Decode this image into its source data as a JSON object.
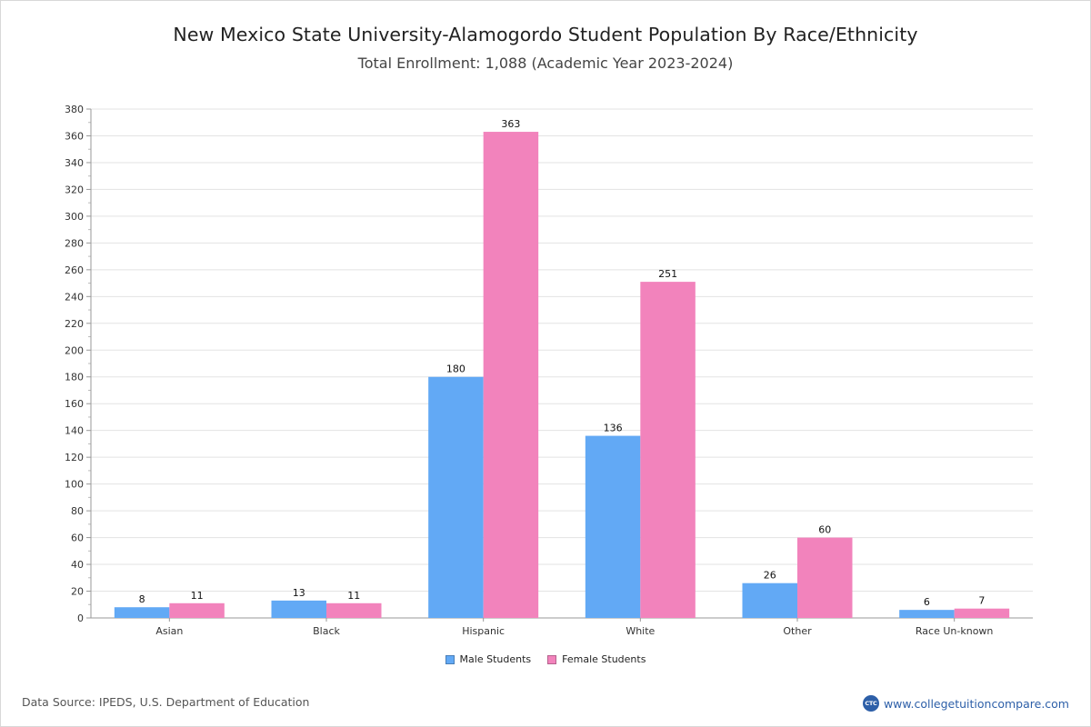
{
  "chart_data": {
    "type": "bar",
    "title": "New Mexico State University-Alamogordo Student Population By Race/Ethnicity",
    "subtitle": "Total Enrollment: 1,088 (Academic Year 2023-2024)",
    "categories": [
      "Asian",
      "Black",
      "Hispanic",
      "White",
      "Other",
      "Race Un-known"
    ],
    "series": [
      {
        "name": "Male Students",
        "values": [
          8,
          13,
          180,
          136,
          26,
          6
        ],
        "color": "#62a9f5"
      },
      {
        "name": "Female Students",
        "values": [
          11,
          11,
          363,
          251,
          60,
          7
        ],
        "color": "#f283bc"
      }
    ],
    "ylim": [
      0,
      380
    ],
    "yticks": [
      0,
      20,
      40,
      60,
      80,
      100,
      120,
      140,
      160,
      180,
      200,
      220,
      240,
      260,
      280,
      300,
      320,
      340,
      360,
      380
    ],
    "grid": true,
    "legend_position": "bottom-center",
    "data_labels": true
  },
  "footer": {
    "source": "Data Source: IPEDS, U.S. Department of Education",
    "brand_text": "www.collegetuitioncompare.com",
    "brand_logo_text": "CTC",
    "brand_color": "#2d5fa8"
  }
}
